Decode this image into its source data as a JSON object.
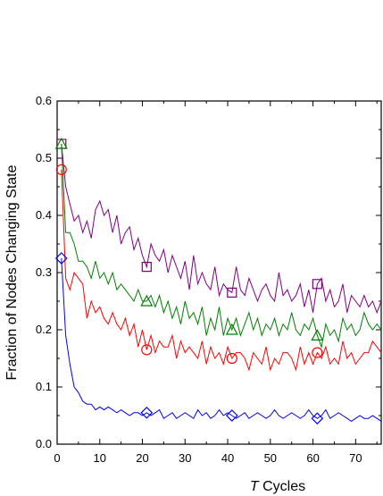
{
  "chart_data": {
    "type": "line",
    "xlabel_italic": "T",
    "xlabel_rest": " Cycles",
    "ylabel": "Fraction of Nodes Changing State",
    "xlim": [
      0,
      76
    ],
    "ylim": [
      0.0,
      0.6
    ],
    "xticks": [
      0,
      10,
      20,
      30,
      40,
      50,
      60,
      70
    ],
    "xtick_labels": [
      "0",
      "10",
      "20",
      "30",
      "40",
      "50",
      "60",
      "70"
    ],
    "yticks": [
      0.0,
      0.1,
      0.2,
      0.3,
      0.4,
      0.5,
      0.6
    ],
    "ytick_labels": [
      "0.0",
      "0.1",
      "0.2",
      "0.3",
      "0.4",
      "0.5",
      "0.6"
    ],
    "grid": false,
    "series": [
      {
        "color": "#800080",
        "marker": "square",
        "marker_x": [
          1,
          21,
          41,
          61
        ],
        "x": [
          1,
          2,
          3,
          4,
          5,
          6,
          7,
          8,
          9,
          10,
          11,
          12,
          13,
          14,
          15,
          16,
          17,
          18,
          19,
          20,
          21,
          22,
          23,
          24,
          25,
          26,
          27,
          28,
          29,
          30,
          31,
          32,
          33,
          34,
          35,
          36,
          37,
          38,
          39,
          40,
          41,
          42,
          43,
          44,
          45,
          46,
          47,
          48,
          49,
          50,
          51,
          52,
          53,
          54,
          55,
          56,
          57,
          58,
          59,
          60,
          61,
          62,
          63,
          64,
          65,
          66,
          67,
          68,
          69,
          70,
          71,
          72,
          73,
          74,
          75,
          76
        ],
        "y": [
          0.525,
          0.45,
          0.42,
          0.39,
          0.4,
          0.37,
          0.39,
          0.36,
          0.41,
          0.425,
          0.4,
          0.41,
          0.37,
          0.4,
          0.35,
          0.37,
          0.38,
          0.34,
          0.36,
          0.33,
          0.31,
          0.35,
          0.33,
          0.32,
          0.34,
          0.3,
          0.33,
          0.31,
          0.29,
          0.32,
          0.27,
          0.33,
          0.28,
          0.3,
          0.28,
          0.27,
          0.31,
          0.26,
          0.28,
          0.27,
          0.265,
          0.31,
          0.27,
          0.26,
          0.29,
          0.27,
          0.25,
          0.27,
          0.28,
          0.26,
          0.25,
          0.3,
          0.26,
          0.27,
          0.25,
          0.26,
          0.28,
          0.24,
          0.27,
          0.23,
          0.28,
          0.29,
          0.25,
          0.27,
          0.24,
          0.25,
          0.28,
          0.23,
          0.26,
          0.25,
          0.24,
          0.26,
          0.24,
          0.25,
          0.23,
          0.25
        ]
      },
      {
        "color": "#008000",
        "marker": "triangle",
        "marker_x": [
          1,
          21,
          41,
          61
        ],
        "x": [
          1,
          2,
          3,
          4,
          5,
          6,
          7,
          8,
          9,
          10,
          11,
          12,
          13,
          14,
          15,
          16,
          17,
          18,
          19,
          20,
          21,
          22,
          23,
          24,
          25,
          26,
          27,
          28,
          29,
          30,
          31,
          32,
          33,
          34,
          35,
          36,
          37,
          38,
          39,
          40,
          41,
          42,
          43,
          44,
          45,
          46,
          47,
          48,
          49,
          50,
          51,
          52,
          53,
          54,
          55,
          56,
          57,
          58,
          59,
          60,
          61,
          62,
          63,
          64,
          65,
          66,
          67,
          68,
          69,
          70,
          71,
          72,
          73,
          74,
          75,
          76
        ],
        "y": [
          0.525,
          0.37,
          0.37,
          0.35,
          0.32,
          0.32,
          0.31,
          0.29,
          0.32,
          0.29,
          0.3,
          0.28,
          0.3,
          0.27,
          0.28,
          0.27,
          0.26,
          0.25,
          0.27,
          0.25,
          0.25,
          0.26,
          0.24,
          0.26,
          0.23,
          0.25,
          0.22,
          0.24,
          0.21,
          0.25,
          0.22,
          0.23,
          0.21,
          0.24,
          0.19,
          0.22,
          0.2,
          0.24,
          0.19,
          0.22,
          0.2,
          0.22,
          0.19,
          0.21,
          0.23,
          0.2,
          0.22,
          0.19,
          0.21,
          0.2,
          0.22,
          0.19,
          0.21,
          0.2,
          0.23,
          0.2,
          0.19,
          0.21,
          0.2,
          0.22,
          0.19,
          0.17,
          0.21,
          0.19,
          0.2,
          0.18,
          0.22,
          0.2,
          0.21,
          0.19,
          0.2,
          0.23,
          0.21,
          0.2,
          0.21,
          0.2
        ]
      },
      {
        "color": "#ff0000",
        "marker": "circle",
        "marker_x": [
          1,
          21,
          41,
          61
        ],
        "x": [
          1,
          2,
          3,
          4,
          5,
          6,
          7,
          8,
          9,
          10,
          11,
          12,
          13,
          14,
          15,
          16,
          17,
          18,
          19,
          20,
          21,
          22,
          23,
          24,
          25,
          26,
          27,
          28,
          29,
          30,
          31,
          32,
          33,
          34,
          35,
          36,
          37,
          38,
          39,
          40,
          41,
          42,
          43,
          44,
          45,
          46,
          47,
          48,
          49,
          50,
          51,
          52,
          53,
          54,
          55,
          56,
          57,
          58,
          59,
          60,
          61,
          62,
          63,
          64,
          65,
          66,
          67,
          68,
          69,
          70,
          71,
          72,
          73,
          74,
          75,
          76
        ],
        "y": [
          0.48,
          0.29,
          0.27,
          0.3,
          0.29,
          0.28,
          0.22,
          0.25,
          0.23,
          0.24,
          0.22,
          0.21,
          0.23,
          0.21,
          0.2,
          0.22,
          0.19,
          0.21,
          0.17,
          0.2,
          0.165,
          0.19,
          0.16,
          0.18,
          0.17,
          0.17,
          0.19,
          0.15,
          0.18,
          0.16,
          0.17,
          0.16,
          0.15,
          0.18,
          0.14,
          0.17,
          0.15,
          0.16,
          0.14,
          0.17,
          0.15,
          0.16,
          0.16,
          0.15,
          0.13,
          0.16,
          0.15,
          0.14,
          0.17,
          0.13,
          0.15,
          0.14,
          0.16,
          0.16,
          0.15,
          0.13,
          0.17,
          0.14,
          0.16,
          0.14,
          0.16,
          0.15,
          0.17,
          0.14,
          0.15,
          0.14,
          0.18,
          0.15,
          0.16,
          0.14,
          0.15,
          0.16,
          0.16,
          0.18,
          0.17,
          0.16
        ]
      },
      {
        "color": "#0000ff",
        "marker": "diamond",
        "marker_x": [
          1,
          21,
          41,
          61
        ],
        "x": [
          1,
          2,
          3,
          4,
          5,
          6,
          7,
          8,
          9,
          10,
          11,
          12,
          13,
          14,
          15,
          16,
          17,
          18,
          19,
          20,
          21,
          22,
          23,
          24,
          25,
          26,
          27,
          28,
          29,
          30,
          31,
          32,
          33,
          34,
          35,
          36,
          37,
          38,
          39,
          40,
          41,
          42,
          43,
          44,
          45,
          46,
          47,
          48,
          49,
          50,
          51,
          52,
          53,
          54,
          55,
          56,
          57,
          58,
          59,
          60,
          61,
          62,
          63,
          64,
          65,
          66,
          67,
          68,
          69,
          70,
          71,
          72,
          73,
          74,
          75,
          76
        ],
        "y": [
          0.325,
          0.19,
          0.14,
          0.1,
          0.09,
          0.075,
          0.07,
          0.07,
          0.06,
          0.065,
          0.06,
          0.065,
          0.06,
          0.055,
          0.06,
          0.055,
          0.05,
          0.055,
          0.055,
          0.05,
          0.055,
          0.05,
          0.055,
          0.06,
          0.045,
          0.05,
          0.055,
          0.045,
          0.05,
          0.055,
          0.05,
          0.045,
          0.06,
          0.05,
          0.055,
          0.045,
          0.05,
          0.06,
          0.05,
          0.055,
          0.05,
          0.045,
          0.05,
          0.055,
          0.045,
          0.05,
          0.055,
          0.05,
          0.045,
          0.05,
          0.06,
          0.05,
          0.045,
          0.05,
          0.055,
          0.05,
          0.045,
          0.05,
          0.06,
          0.05,
          0.045,
          0.05,
          0.06,
          0.045,
          0.05,
          0.055,
          0.05,
          0.045,
          0.04,
          0.045,
          0.05,
          0.045,
          0.045,
          0.05,
          0.045,
          0.04
        ]
      }
    ]
  }
}
